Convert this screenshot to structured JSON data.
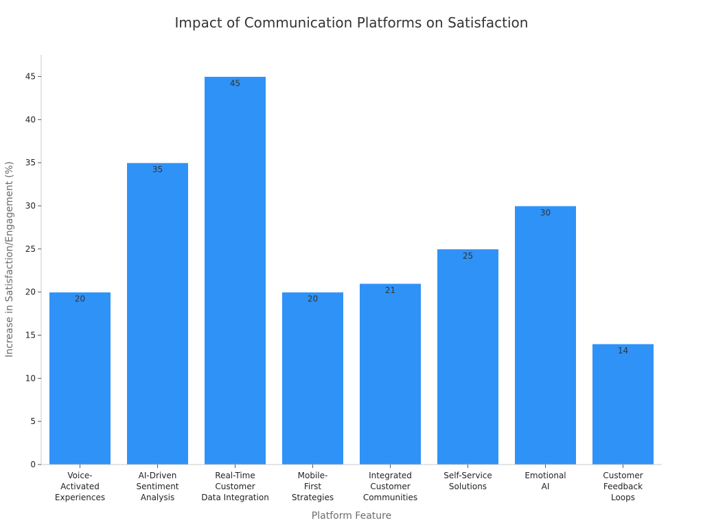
{
  "chart_data": {
    "type": "bar",
    "title": "Impact of Communication Platforms on Satisfaction",
    "xlabel": "Platform Feature",
    "ylabel": "Increase in Satisfaction/Engagement (%)",
    "ylim": [
      0,
      47.5
    ],
    "yticks": [
      0,
      5,
      10,
      15,
      20,
      25,
      30,
      35,
      40,
      45
    ],
    "categories": [
      [
        "Voice-",
        "Activated",
        "Experiences"
      ],
      [
        "AI-Driven",
        "Sentiment",
        "Analysis"
      ],
      [
        "Real-Time",
        "Customer",
        "Data Integration"
      ],
      [
        "Mobile-",
        "First",
        "Strategies"
      ],
      [
        "Integrated",
        "Customer",
        "Communities"
      ],
      [
        "Self-Service",
        "Solutions"
      ],
      [
        "Emotional",
        "AI"
      ],
      [
        "Customer",
        "Feedback",
        "Loops"
      ]
    ],
    "values": [
      20,
      35,
      45,
      20,
      21,
      25,
      30,
      14
    ],
    "bar_color": "#2f92f7",
    "grid": false,
    "legend": "none"
  }
}
